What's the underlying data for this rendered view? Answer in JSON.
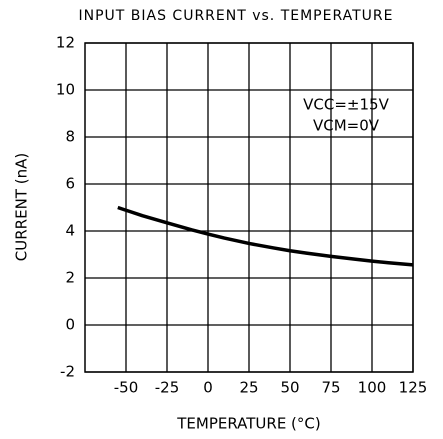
{
  "chart_data": {
    "type": "line",
    "title": "INPUT BIAS CURRENT vs. TEMPERATURE",
    "x_label": "TEMPERATURE (°C)",
    "y_label": "CURRENT (nA)",
    "annotations": [
      "VCC=±15V",
      "VCM=0V"
    ],
    "x": [
      -55,
      -40,
      -25,
      -10,
      0,
      10,
      25,
      40,
      50,
      60,
      75,
      90,
      100,
      110,
      125
    ],
    "values": [
      5.0,
      4.65,
      4.35,
      4.05,
      3.87,
      3.7,
      3.47,
      3.28,
      3.16,
      3.06,
      2.92,
      2.8,
      2.72,
      2.65,
      2.56
    ],
    "color": "#000000",
    "xlim": [
      -75,
      125
    ],
    "xticks": [
      -50,
      -25,
      0,
      25,
      50,
      75,
      100,
      125
    ],
    "ylim": [
      -2,
      12
    ],
    "yticks": [
      -2,
      0,
      2,
      4,
      6,
      8,
      10,
      12
    ],
    "grid": true
  }
}
